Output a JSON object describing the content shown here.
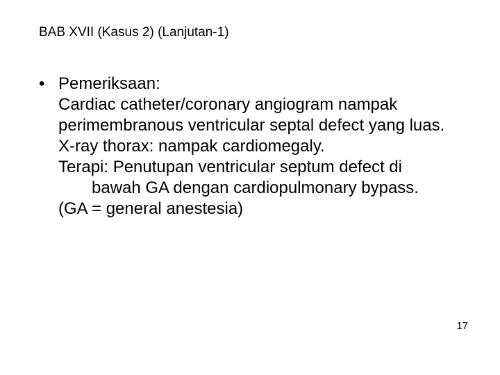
{
  "title": "BAB XVII  (Kasus 2) (Lanjutan-1)",
  "bullet_marker": "•",
  "bullet_label": "Pemeriksaan:",
  "line1": "Cardiac catheter/coronary angiogram nampak perimembranous ventricular septal defect yang luas.",
  "line2": "X-ray thorax: nampak cardiomegaly.",
  "line3a": "Terapi: Penutupan ventricular septum defect di",
  "line3b": "bawah GA dengan cardiopulmonary bypass.",
  "line4": "(GA = general anestesia)",
  "page_number": "17",
  "colors": {
    "background": "#ffffff",
    "text": "#000000"
  },
  "fontsizes": {
    "title": 19,
    "body": 24,
    "page_number": 15
  }
}
